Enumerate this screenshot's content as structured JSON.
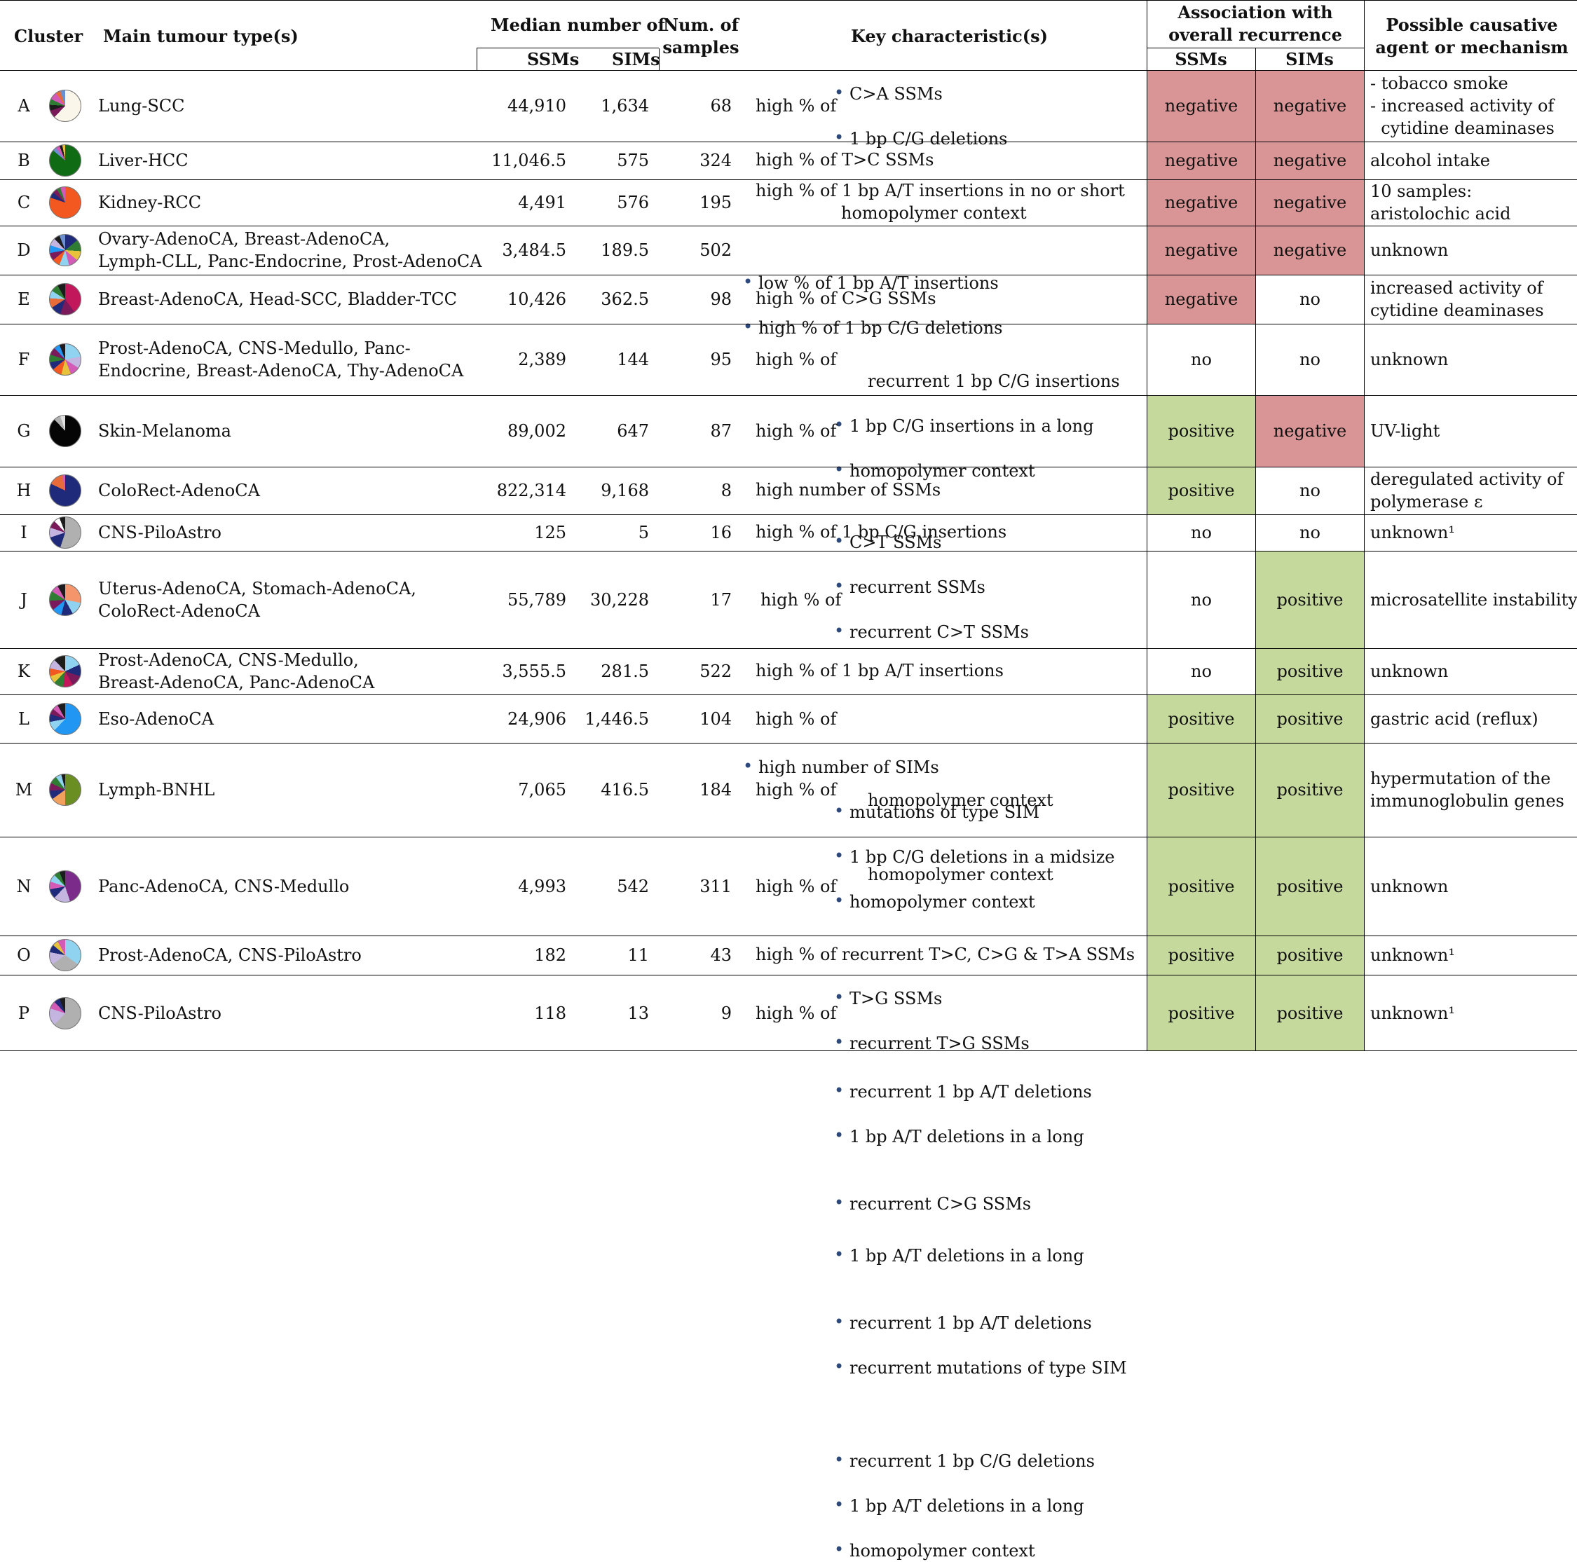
{
  "headers": {
    "cluster": "Cluster",
    "tumour": "Main tumour type(s)",
    "median": "Median number of",
    "ssms": "SSMs",
    "sims": "SIMs",
    "samples_l1": "Num. of",
    "samples_l2": "samples",
    "key": "Key characteristic(s)",
    "assoc_l1": "Association with",
    "assoc_l2": "overall recurrence",
    "cause_l1": "Possible causative",
    "cause_l2": "agent or mechanism"
  },
  "colors": {
    "negative": "#d99595",
    "positive": "#c6d99d",
    "bullet": "#2e4a7d"
  },
  "rows": [
    {
      "id": "A",
      "tumour": [
        "Lung-SCC"
      ],
      "ssms": "44,910",
      "sims": "1,634",
      "n": "68",
      "prefix": "high % of",
      "items": [
        "C>A SSMs",
        "1 bp C/G deletions"
      ],
      "assoc_ssm": "negative",
      "assoc_sim": "negative",
      "cause": [
        "- tobacco smoke",
        "- increased activity of",
        "  cytidine deaminases"
      ],
      "pie": "conic-gradient(#fbf6ea 0 62%, #7a1a5a 62% 70%, #1c1c1c 70% 76%, #2e7d32 76% 82%, #d35bb5 82% 90%, #e86b3a 90% 95%, #6b8fd1 95% 100%)"
    },
    {
      "id": "B",
      "tumour": [
        "Liver-HCC"
      ],
      "ssms": "11,046.5",
      "sims": "575",
      "n": "324",
      "prefix": "",
      "items": [
        "high % of T>C SSMs"
      ],
      "assoc_ssm": "negative",
      "assoc_sim": "negative",
      "cause": [
        "alcohol intake"
      ],
      "pie": "conic-gradient(#0f6b14 0 86%, #6b8fd1 86% 90%, #d35bb5 90% 94%, #1c1c1c 94% 97%, #e8c23a 97% 100%)"
    },
    {
      "id": "C",
      "tumour": [
        "Kidney-RCC"
      ],
      "ssms": "4,491",
      "sims": "576",
      "n": "195",
      "prefix": "",
      "items": [
        "high % of 1 bp A/T insertions in no or short",
        "homopolymer context"
      ],
      "assoc_ssm": "negative",
      "assoc_sim": "negative",
      "cause": [
        "10 samples:",
        "aristolochic acid"
      ],
      "pie": "conic-gradient(#f2581f 0 80%, #1f2a7a 80% 86%, #7a1a5a 86% 91%, #2e7d32 91% 95%, #d35bb5 95% 100%)"
    },
    {
      "id": "D",
      "tumour": [
        "Ovary-AdenoCA, Breast-AdenoCA,",
        "Lymph-CLL, Panc-Endocrine, Prost-AdenoCA"
      ],
      "ssms": "3,484.5",
      "sims": "189.5",
      "n": "502",
      "prefix": "",
      "items": [
        "low % of 1 bp A/T insertions",
        "high % of 1 bp C/G deletions"
      ],
      "assoc_ssm": "negative",
      "assoc_sim": "negative",
      "cause": [
        "unknown"
      ],
      "pie": "conic-gradient(#1f2a7a 0 14%, #2e7d32 14% 26%, #e8c23a 26% 36%, #d35bb5 36% 46%, #8fd3f0 46% 56%, #f2581f 56% 64%, #7a1a5a 64% 72%, #2196f3 72% 80%, #c4b5e0 80% 88%, #1c1c1c 88% 94%, #6b8fd1 94% 100%)"
    },
    {
      "id": "E",
      "tumour": [
        "Breast-AdenoCA, Head-SCC, Bladder-TCC"
      ],
      "ssms": "10,426",
      "sims": "362.5",
      "n": "98",
      "prefix": "",
      "items": [
        "high % of C>G SSMs"
      ],
      "assoc_ssm": "negative",
      "assoc_sim": "no",
      "cause": [
        "increased activity of",
        "cytidine deaminases"
      ],
      "pie": "conic-gradient(#c2185b 0 40%, #7a1a5a 40% 55%, #1f2a7a 55% 66%, #e86b3a 66% 76%, #8fd3f0 76% 84%, #2e7d32 84% 92%, #1c1c1c 92% 100%)"
    },
    {
      "id": "F",
      "tumour": [
        "Prost-AdenoCA, CNS-Medullo, Panc-",
        "Endocrine, Breast-AdenoCA, Thy-AdenoCA"
      ],
      "ssms": "2,389",
      "sims": "144",
      "n": "95",
      "prefix": "high % of",
      "items": [
        "1 bp C/G insertions in a long",
        "homopolymer context",
        "recurrent 1 bp C/G insertions"
      ],
      "itemWrap": [
        1
      ],
      "assoc_ssm": "no",
      "assoc_sim": "no",
      "cause": [
        "unknown"
      ],
      "pie": "conic-gradient(#8fd3f0 0 22%, #c4b5e0 22% 34%, #d35bb5 34% 44%, #e8c23a 44% 54%, #f2581f 54% 64%, #1f2a7a 64% 72%, #2e7d32 72% 80%, #7a1a5a 80% 88%, #2196f3 88% 94%, #1c1c1c 94% 100%)"
    },
    {
      "id": "G",
      "tumour": [
        "Skin-Melanoma"
      ],
      "ssms": "89,002",
      "sims": "647",
      "n": "87",
      "prefix": "high % of",
      "items": [
        "C>T SSMs",
        "recurrent SSMs",
        "recurrent C>T SSMs"
      ],
      "assoc_ssm": "positive",
      "assoc_sim": "negative",
      "cause": [
        "UV-light"
      ],
      "pie": "conic-gradient(#050505 0 88%, #b0b0b0 88% 95%, #e0e0e0 95% 100%)"
    },
    {
      "id": "H",
      "tumour": [
        "ColoRect-AdenoCA"
      ],
      "ssms": "822,314",
      "sims": "9,168",
      "n": "8",
      "prefix": "",
      "items": [
        "high number of SSMs"
      ],
      "assoc_ssm": "positive",
      "assoc_sim": "no",
      "cause": [
        "deregulated activity of",
        "polymerase ε"
      ],
      "pie": "conic-gradient(#1f2a7a 0 82%, #e86b3a 82% 97%, #d35bb5 97% 100%)"
    },
    {
      "id": "I",
      "tumour": [
        "CNS-PiloAstro"
      ],
      "ssms": "125",
      "sims": "5",
      "n": "16",
      "prefix": "",
      "items": [
        "high % of 1 bp C/G insertions"
      ],
      "assoc_ssm": "no",
      "assoc_sim": "no",
      "cause": [
        "unknown¹"
      ],
      "pie": "conic-gradient(#b0b0b0 0 55%, #1f2a7a 55% 70%, #c4b5e0 70% 80%, #7a1a5a 80% 88%, #ffffff 88% 94%, #1c1c1c 94% 100%)"
    },
    {
      "id": "J",
      "tumour": [
        "Uterus-AdenoCA, Stomach-AdenoCA,",
        "ColoRect-AdenoCA"
      ],
      "ssms": "55,789",
      "sims": "30,228",
      "n": "17",
      "prefix": "high % of",
      "top": "high number of SIMs",
      "items": [
        "mutations of type SIM",
        "1 bp C/G deletions in a midsize",
        "homopolymer context"
      ],
      "itemWrap": [
        2
      ],
      "assoc_ssm": "no",
      "assoc_sim": "positive",
      "cause": [
        "microsatellite instability"
      ],
      "pie": "conic-gradient(#f5956b 0 28%, #8fd3f0 28% 42%, #1f2a7a 42% 54%, #2196f3 54% 64%, #7a1a5a 64% 74%, #2e7d32 74% 84%, #d35bb5 84% 92%, #1c1c1c 92% 100%)"
    },
    {
      "id": "K",
      "tumour": [
        "Prost-AdenoCA, CNS-Medullo,",
        "Breast-AdenoCA, Panc-AdenoCA"
      ],
      "ssms": "3,555.5",
      "sims": "281.5",
      "n": "522",
      "prefix": "",
      "items": [
        "high % of 1 bp A/T insertions"
      ],
      "assoc_ssm": "no",
      "assoc_sim": "positive",
      "cause": [
        "unknown"
      ],
      "pie": "conic-gradient(#8fd3f0 0 18%, #1f2a7a 18% 30%, #7a1a5a 30% 42%, #c2185b 42% 52%, #2e7d32 52% 62%, #e8c23a 62% 70%, #f2581f 70% 78%, #c4b5e0 78% 88%, #1c1c1c 88% 100%)"
    },
    {
      "id": "L",
      "tumour": [
        "Eso-AdenoCA"
      ],
      "ssms": "24,906",
      "sims": "1,446.5",
      "n": "104",
      "prefix": "high % of",
      "items": [
        "T>G SSMs",
        "recurrent T>G SSMs"
      ],
      "assoc_ssm": "positive",
      "assoc_sim": "positive",
      "cause": [
        "gastric acid (reflux)"
      ],
      "pie": "conic-gradient(#2196f3 0 62%, #8fd3f0 62% 72%, #1f2a7a 72% 80%, #7a1a5a 80% 86%, #d35bb5 86% 92%, #1c1c1c 92% 100%)"
    },
    {
      "id": "M",
      "tumour": [
        "Lymph-BNHL"
      ],
      "ssms": "7,065",
      "sims": "416.5",
      "n": "184",
      "prefix": "high % of",
      "items": [
        "recurrent 1 bp A/T deletions",
        "1 bp A/T deletions in a long",
        "homopolymer context",
        "recurrent C>G SSMs"
      ],
      "itemWrap": [
        1
      ],
      "assoc_ssm": "positive",
      "assoc_sim": "positive",
      "cause": [
        "hypermutation of the",
        "immunoglobulin genes"
      ],
      "pie": "conic-gradient(#6b8e23 0 50%, #f2a05e 50% 65%, #1f2a7a 65% 74%, #7a1a5a 74% 82%, #2e7d32 82% 90%, #8fd3f0 90% 96%, #1c1c1c 96% 100%)"
    },
    {
      "id": "N",
      "tumour": [
        "Panc-AdenoCA, CNS-Medullo"
      ],
      "ssms": "4,993",
      "sims": "542",
      "n": "311",
      "prefix": "high % of",
      "items": [
        "1 bp A/T deletions in a long",
        "homopolymer context",
        "recurrent 1 bp A/T deletions",
        "recurrent mutations of type SIM"
      ],
      "itemWrap": [
        0
      ],
      "assoc_ssm": "positive",
      "assoc_sim": "positive",
      "cause": [
        "unknown"
      ],
      "pie": "conic-gradient(#7b2c8a 0 45%, #c4b5e0 45% 62%, #1f2a7a 62% 72%, #d35bb5 72% 80%, #8fd3f0 80% 88%, #2e7d32 88% 94%, #1c1c1c 94% 100%)"
    },
    {
      "id": "O",
      "tumour": [
        "Prost-AdenoCA, CNS-PiloAstro"
      ],
      "ssms": "182",
      "sims": "11",
      "n": "43",
      "prefix": "",
      "items": [
        "high % of recurrent T>C, C>G & T>A SSMs"
      ],
      "assoc_ssm": "positive",
      "assoc_sim": "positive",
      "cause": [
        "unknown¹"
      ],
      "pie": "conic-gradient(#8fd3f0 0 35%, #b0b0b0 35% 65%, #c4b5e0 65% 78%, #1f2a7a 78% 86%, #e8c23a 86% 92%, #d35bb5 92% 100%)"
    },
    {
      "id": "P",
      "tumour": [
        "CNS-PiloAstro"
      ],
      "ssms": "118",
      "sims": "13",
      "n": "9",
      "prefix": "high % of",
      "items": [
        "recurrent 1 bp C/G deletions",
        "1 bp A/T deletions in a long",
        "homopolymer context"
      ],
      "itemWrap": [
        2
      ],
      "assoc_ssm": "positive",
      "assoc_sim": "positive",
      "cause": [
        "unknown¹"
      ],
      "pie": "conic-gradient(#b0b0b0 0 62%, #c4b5e0 62% 80%, #d35bb5 80% 88%, #1f2a7a 88% 94%, #1c1c1c 94% 100%)"
    }
  ]
}
